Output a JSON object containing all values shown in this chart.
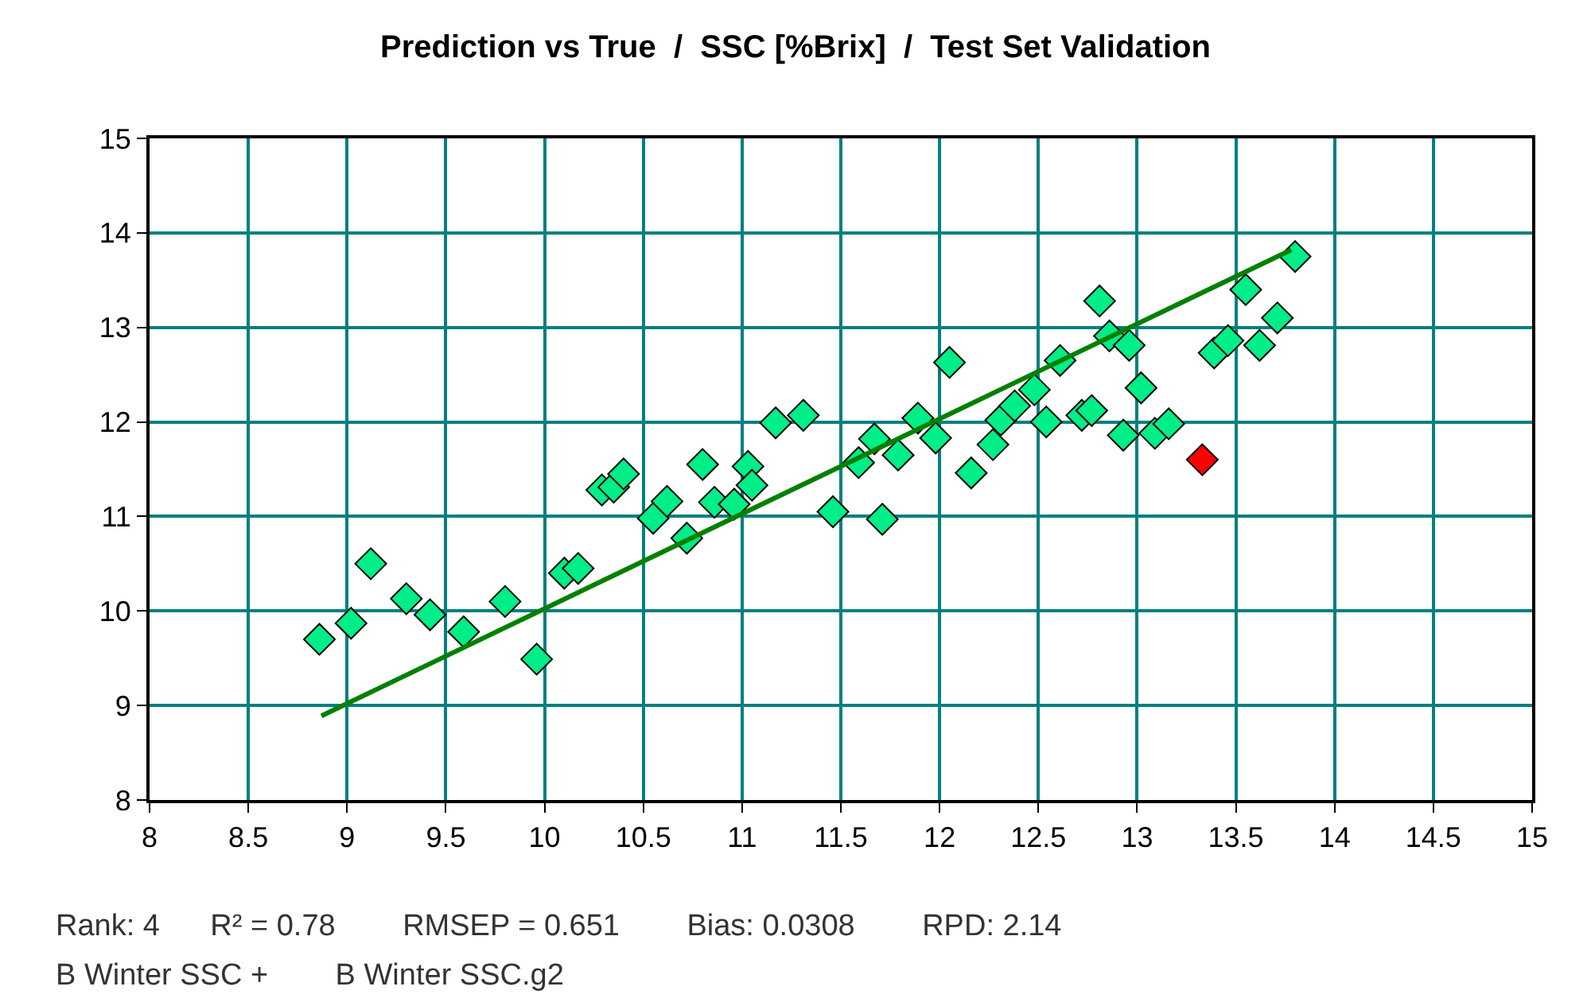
{
  "chart_data": {
    "type": "scatter",
    "title": "Prediction vs True  /  SSC [%Brix]  /  Test Set Validation",
    "marker": "diamond",
    "grid": true,
    "xlim": [
      8,
      15
    ],
    "xticks": [
      8,
      8.5,
      9,
      9.5,
      10,
      10.5,
      11,
      11.5,
      12,
      12.5,
      13,
      13.5,
      14,
      14.5,
      15
    ],
    "ylim": [
      8,
      15
    ],
    "yticks": [
      8,
      9,
      10,
      11,
      12,
      13,
      14,
      15
    ],
    "series": [
      {
        "color": "#00ee88",
        "x": [
          8.86,
          9.02,
          9.12,
          9.3,
          9.42,
          9.59,
          9.8,
          9.96,
          10.1,
          10.17,
          10.29,
          10.35,
          10.4,
          10.55,
          10.62,
          10.72,
          10.8,
          10.86,
          10.96,
          11.03,
          11.05,
          11.17,
          11.31,
          11.46,
          11.59,
          11.67,
          11.71,
          11.79,
          11.89,
          11.98,
          12.05,
          12.16,
          12.27,
          12.31,
          12.38,
          12.48,
          12.54,
          12.61,
          12.72,
          12.77,
          12.81,
          12.86,
          12.93,
          12.96,
          13.02,
          13.09,
          13.16,
          13.39,
          13.46,
          13.55,
          13.62,
          13.71,
          13.8
        ],
        "values": [
          9.7,
          9.87,
          10.5,
          10.13,
          9.96,
          9.78,
          10.1,
          9.49,
          10.4,
          10.45,
          11.28,
          11.31,
          11.45,
          10.98,
          11.16,
          10.77,
          11.55,
          11.15,
          11.13,
          11.53,
          11.33,
          11.99,
          12.07,
          11.05,
          11.57,
          11.82,
          10.97,
          11.65,
          12.04,
          11.83,
          12.63,
          11.46,
          11.76,
          12.02,
          12.17,
          12.34,
          12.0,
          12.65,
          12.07,
          12.12,
          13.28,
          12.91,
          11.86,
          12.81,
          12.36,
          11.88,
          11.98,
          12.73,
          12.86,
          13.4,
          12.81,
          13.1,
          13.75
        ]
      },
      {
        "color": "#ff0000",
        "x": [
          13.33
        ],
        "values": [
          11.6
        ]
      },
      {
        "type": "line",
        "color": "#008000",
        "marker": "none",
        "x": [
          8.87,
          13.78
        ],
        "values": [
          8.89,
          13.82
        ]
      }
    ],
    "annotations": [
      "Rank: 4      R² = 0.78        RMSEP = 0.651        Bias: 0.0308        RPD: 2.14",
      "B Winter SSC +        B Winter SSC.g2"
    ]
  }
}
